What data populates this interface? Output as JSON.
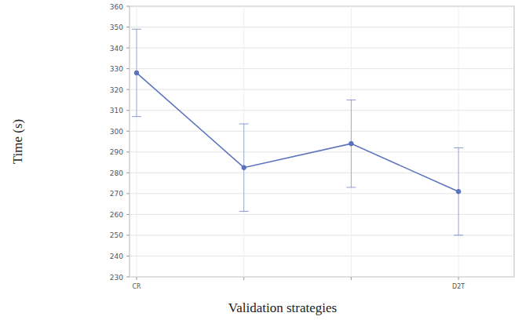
{
  "chart_data": {
    "type": "line",
    "x_label": "Validation strategies",
    "y_label": "Time (s)",
    "categories": [
      "CR",
      null,
      null,
      "D2T"
    ],
    "values": [
      328,
      282.5,
      294,
      271
    ],
    "errors": [
      21,
      21,
      21,
      21
    ],
    "color": "#5b72bd",
    "marker": "circle",
    "ylim": [
      230,
      360
    ],
    "yticks": [
      230,
      240,
      250,
      260,
      270,
      280,
      290,
      300,
      310,
      320,
      330,
      340,
      350,
      360
    ],
    "grid": true
  }
}
